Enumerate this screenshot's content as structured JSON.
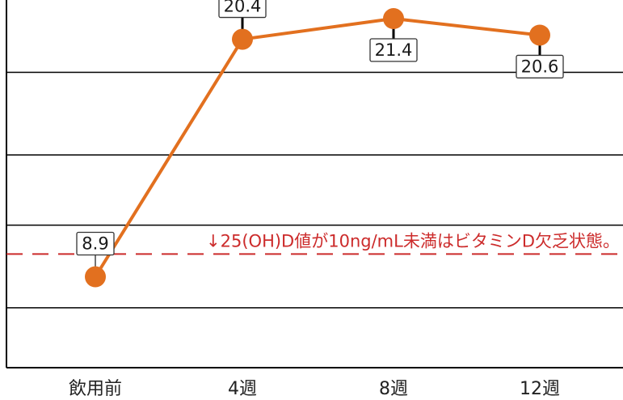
{
  "chart_data": {
    "type": "line",
    "categories": [
      "飲用前",
      "4週",
      "8週",
      "12週"
    ],
    "series": [
      {
        "values": [
          8.9,
          20.4,
          21.4,
          20.6
        ],
        "color": "#e2701f"
      }
    ],
    "data_labels": [
      "8.9",
      "20.4",
      "21.4",
      "20.6"
    ],
    "ylim": [
      4.5,
      22.3
    ],
    "gridlines_y": [
      7.4,
      11.4,
      14.8,
      18.8
    ],
    "grid": true,
    "legend": "none",
    "reference_line": {
      "value": 10,
      "style": "dashed",
      "color": "#cc2b2b",
      "label": "↓25(OH)D値が10ng/mL未満はビタミンD欠乏状態。"
    }
  }
}
